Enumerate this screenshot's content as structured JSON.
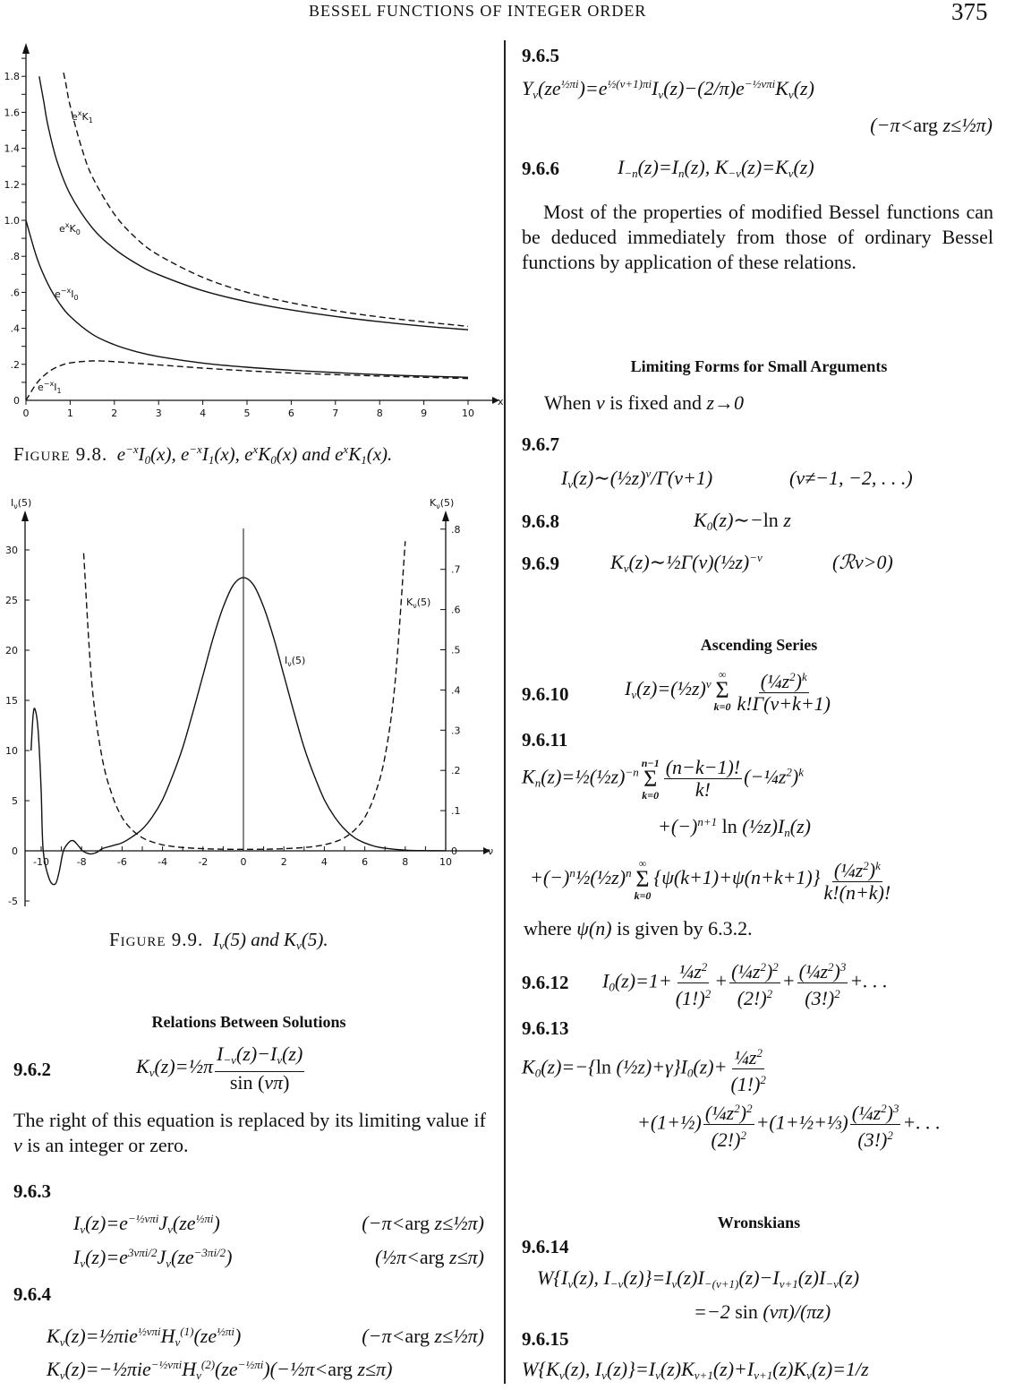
{
  "header": {
    "running_title": "BESSEL FUNCTIONS OF INTEGER ORDER",
    "page_number": "375"
  },
  "figure_9_8": {
    "label": "Figure 9.8.",
    "caption": "e^{−x}I_0(x), e^{−x}I_1(x), e^xK_0(x) and e^xK_1(x).",
    "curve_labels": [
      "e^xK_1",
      "e^xK_0",
      "e^{−x}I_0",
      "e^{−x}I_1"
    ],
    "xlabel": "x"
  },
  "figure_9_9": {
    "label": "Figure 9.9.",
    "caption": "I_ν(5) and K_ν(5).",
    "left_axis_label": "I_ν(5)",
    "right_axis_label": "K_ν(5)",
    "xlabel": "ν",
    "curve_labels": [
      "I_ν(5)",
      "K_ν(5)"
    ]
  },
  "chart_data": [
    {
      "type": "line",
      "xlim": [
        0,
        10
      ],
      "ylim": [
        0,
        1.8
      ],
      "xticks": [
        "0",
        "1",
        "2",
        "3",
        "4",
        "5",
        "6",
        "7",
        "8",
        "9",
        "10"
      ],
      "yticks": [
        "0",
        ".2",
        ".4",
        ".6",
        ".8",
        "1.0",
        "1.2",
        "1.4",
        "1.6",
        "1.8"
      ],
      "xlabel": "x",
      "series": [
        {
          "name": "e^xK_1",
          "style": "dashed",
          "x": [
            0.85,
            0.9,
            1,
            1.25,
            1.5,
            2,
            2.5,
            3,
            4,
            5,
            6,
            7,
            8,
            9,
            10
          ],
          "y": [
            1.82,
            1.762,
            1.636,
            1.41,
            1.243,
            1.034,
            0.899,
            0.807,
            0.683,
            0.6,
            0.542,
            0.498,
            0.463,
            0.436,
            0.411
          ]
        },
        {
          "name": "e^xK_0",
          "style": "solid",
          "x": [
            0.3,
            0.4,
            0.5,
            0.7,
            1,
            1.5,
            2,
            2.5,
            3,
            4,
            5,
            6,
            7,
            8,
            9,
            10
          ],
          "y": [
            1.8,
            1.663,
            1.524,
            1.33,
            1.145,
            0.958,
            0.842,
            0.759,
            0.698,
            0.609,
            0.548,
            0.502,
            0.466,
            0.437,
            0.412,
            0.392
          ]
        },
        {
          "name": "e^{−x}I_0",
          "style": "solid",
          "x": [
            0,
            0.25,
            0.5,
            0.75,
            1,
            1.5,
            2,
            2.5,
            3,
            4,
            5,
            6,
            7,
            8,
            9,
            10
          ],
          "y": [
            1,
            0.789,
            0.645,
            0.542,
            0.466,
            0.367,
            0.309,
            0.27,
            0.243,
            0.207,
            0.184,
            0.167,
            0.154,
            0.143,
            0.135,
            0.128
          ]
        },
        {
          "name": "e^{−x}I_1",
          "style": "dashed",
          "x": [
            0,
            0.25,
            0.5,
            0.75,
            1,
            1.5,
            2,
            2.5,
            3,
            4,
            5,
            6,
            7,
            8,
            9,
            10
          ],
          "y": [
            0,
            0.097,
            0.156,
            0.19,
            0.208,
            0.219,
            0.215,
            0.206,
            0.197,
            0.179,
            0.164,
            0.152,
            0.143,
            0.135,
            0.128,
            0.121
          ]
        }
      ]
    },
    {
      "type": "line",
      "xlim": [
        -10.8,
        10
      ],
      "ylim": [
        -5,
        32
      ],
      "y2lim": [
        0,
        0.8
      ],
      "xticks": [
        "-10",
        "-8",
        "-6",
        "-4",
        "-2",
        "0",
        "2",
        "4",
        "6",
        "8",
        "10"
      ],
      "yticks": [
        "30",
        "25",
        "20",
        "15",
        "10",
        "5",
        "0",
        "-5"
      ],
      "y2ticks": [
        ".8",
        ".7",
        ".6",
        ".5",
        ".4",
        ".3",
        ".2",
        ".1",
        "0"
      ],
      "xlabel": "ν",
      "ylabel": "I_ν(5)",
      "y2label": "K_ν(5)",
      "series": [
        {
          "name": "I_ν(5)",
          "style": "solid",
          "axis": "left",
          "x": [
            -10.5,
            -10.4,
            -10.3,
            -10.15,
            -10,
            -9.9,
            -9.6,
            -9.3,
            -9.1,
            -8.9,
            -8.6,
            -8.4,
            -8.2,
            -7.95,
            -7.7,
            -7.5,
            -7.2,
            -7,
            -6.5,
            -6,
            -5.5,
            -5,
            -4.5,
            -4,
            -3.5,
            -3,
            -2.5,
            -2,
            -1.5,
            -1,
            -0.5,
            0,
            0.5,
            1,
            1.5,
            2,
            2.5,
            3,
            3.5,
            4,
            4.5,
            5,
            5.5,
            6,
            6.5,
            7,
            8,
            9,
            10
          ],
          "y": [
            10,
            13.5,
            14.1,
            12,
            6,
            0,
            -2.8,
            -3.3,
            -2,
            0,
            0.9,
            1.0,
            0.6,
            0,
            -0.25,
            -0.3,
            -0.1,
            0.2,
            0.5,
            0.8,
            1.4,
            2.16,
            3.4,
            5.1,
            7.5,
            10.3,
            13.8,
            17.5,
            21.2,
            24.3,
            26.5,
            27.24,
            26.5,
            24.3,
            21.2,
            17.5,
            13.8,
            10.3,
            7.5,
            5.1,
            3.4,
            2.16,
            1.3,
            0.79,
            0.45,
            0.26,
            0.07,
            0.02,
            0.005
          ]
        },
        {
          "name": "K_ν(5)",
          "style": "dashed",
          "axis": "right",
          "x": [
            -7.9,
            -7.5,
            -7,
            -6.5,
            -6,
            -5.5,
            -5,
            -4.5,
            -4,
            -3.5,
            -3,
            -2,
            -1,
            0,
            1,
            2,
            3,
            3.5,
            4,
            4.5,
            5,
            5.5,
            6,
            6.5,
            7,
            7.5,
            8
          ],
          "y": [
            0.74,
            0.42,
            0.235,
            0.14,
            0.083,
            0.052,
            0.0327,
            0.022,
            0.015,
            0.011,
            0.0083,
            0.0053,
            0.004,
            0.0037,
            0.004,
            0.0053,
            0.0083,
            0.011,
            0.015,
            0.022,
            0.0327,
            0.052,
            0.083,
            0.14,
            0.235,
            0.42,
            0.77
          ]
        }
      ]
    }
  ],
  "left": {
    "relations_heading": "Relations Between Solutions",
    "eq_962": {
      "num": "9.6.2",
      "expr": "K_ν(z)=½π\\frac{I_{−ν}(z)−I_ν(z)}{\\r{sin (}νπ\\r{)}}"
    },
    "para_962": "The right of this equation is replaced by its limiting value if ν is an integer or zero.",
    "eq_963": {
      "num": "9.6.3",
      "lines": [
        "I_ν(z)=e^{−½νπi}J_ν(ze^{½πi})",
        "I_ν(z)=e^{3νπi/2}J_ν(ze^{−3πi/2})"
      ],
      "conds": [
        "(−π<\\r{arg} z≤½π)",
        "(½π<\\r{arg} z≤π)"
      ]
    },
    "eq_964": {
      "num": "9.6.4",
      "lines": [
        "K_ν(z)=½πie^{½νπi}H_ν^{(1)}(ze^{½πi})",
        "K_ν(z)=−½πie^{−½νπi}H_ν^{(2)}(ze^{−½πi})(−½π<\\r{arg} z≤π)"
      ],
      "conds": [
        "(−π<\\r{arg} z≤½π)"
      ]
    }
  },
  "right": {
    "eq_965": {
      "num": "9.6.5",
      "expr": "Y_ν(ze^{½πi})=e^{½(ν+1)πi}I_ν(z)−(2/π)e^{−½νπi}K_ν(z)",
      "cond": "(−π<\\r{arg} z≤½π)"
    },
    "eq_966": {
      "num": "9.6.6",
      "expr": "I_{−n}(z)=I_n(z), K_{−ν}(z)=K_ν(z)"
    },
    "para_966": "Most of the properties of modified Bessel functions can be deduced immediately from those of ordinary Bessel functions by application of these relations.",
    "limiting_heading": "Limiting Forms for Small Arguments",
    "limiting_intro": "When ν is fixed and z→0",
    "eq_967": {
      "num": "9.6.7",
      "expr": "I_ν(z)∼(½z)^ν/Γ(ν+1)",
      "cond": "(ν≠−1, −2, . . .)"
    },
    "eq_968": {
      "num": "9.6.8",
      "expr": "K_0(z)∼−\\r{ln} z"
    },
    "eq_969": {
      "num": "9.6.9",
      "expr": "K_ν(z)∼½Γ(ν)(½z)^{−ν}",
      "cond": "(ℛν>0)"
    },
    "ascending_heading": "Ascending Series",
    "eq_9610": {
      "num": "9.6.10",
      "expr": "I_ν(z)=(½z)^ν\\sum{∞}{k=0}\\frac{(¼z^2)^k}{k!Γ(ν+k+1)}"
    },
    "eq_9611": {
      "num": "9.6.11",
      "lines": [
        "K_n(z)=½(½z)^{−n}\\sum{n−1}{k=0}\\frac{(n−k−1)!}{k!}(−¼z^2)^k",
        "+(−)^{n+1} \\r{ln} (½z)I_n(z)",
        "+(−)^n½(½z)^n\\sum{∞}{k=0}{ψ(k+1)+ψ(n+k+1)}\\frac{(¼z^2)^k}{k!(n+k)!}"
      ]
    },
    "where_text": "where ψ(n) is given by 6.3.2.",
    "eq_9612": {
      "num": "9.6.12",
      "expr": "I_0(z)=1+\\frac{¼z^2}{(1!)^2}+\\frac{(¼z^2)^2}{(2!)^2}+\\frac{(¼z^2)^3}{(3!)^2}+. . ."
    },
    "eq_9613": {
      "num": "9.6.13",
      "lines": [
        "K_0(z)=−{\\r{ln} (½z)+γ}I_0(z)+\\frac{¼z^2}{(1!)^2}",
        "+(1+½)\\frac{(¼z^2)^2}{(2!)^2}+(1+½+⅓)\\frac{(¼z^2)^3}{(3!)^2}+. . ."
      ]
    },
    "wronskians_heading": "Wronskians",
    "eq_9614": {
      "num": "9.6.14",
      "lines": [
        "W{I_ν(z), I_{−ν}(z)}=I_ν(z)I_{−(ν+1)}(z)−I_{ν+1}(z)I_{−ν}(z)",
        "=−2 \\r{sin} (νπ)/(πz)"
      ]
    },
    "eq_9615": {
      "num": "9.6.15",
      "expr": "W{K_ν(z), I_ν(z)}=I_ν(z)K_{ν+1}(z)+I_{ν+1}(z)K_ν(z)=1/z"
    }
  }
}
